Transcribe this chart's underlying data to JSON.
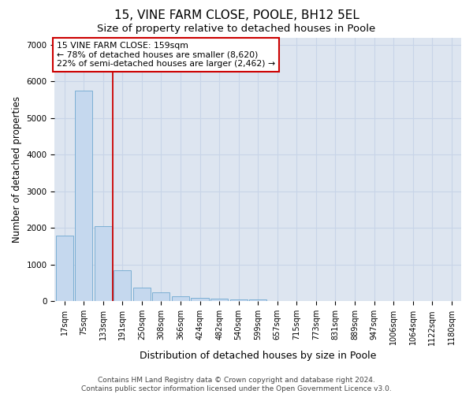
{
  "title1": "15, VINE FARM CLOSE, POOLE, BH12 5EL",
  "title2": "Size of property relative to detached houses in Poole",
  "xlabel": "Distribution of detached houses by size in Poole",
  "ylabel": "Number of detached properties",
  "categories": [
    "17sqm",
    "75sqm",
    "133sqm",
    "191sqm",
    "250sqm",
    "308sqm",
    "366sqm",
    "424sqm",
    "482sqm",
    "540sqm",
    "599sqm",
    "657sqm",
    "715sqm",
    "773sqm",
    "831sqm",
    "889sqm",
    "947sqm",
    "1006sqm",
    "1064sqm",
    "1122sqm",
    "1180sqm"
  ],
  "values": [
    1800,
    5750,
    2060,
    840,
    380,
    240,
    130,
    90,
    70,
    50,
    50,
    0,
    0,
    0,
    0,
    0,
    0,
    0,
    0,
    0,
    0
  ],
  "bar_color": "#c5d8ee",
  "bar_edge_color": "#6fa8d0",
  "vline_x_idx": 2,
  "vline_color": "#cc0000",
  "annotation_text": "15 VINE FARM CLOSE: 159sqm\n← 78% of detached houses are smaller (8,620)\n22% of semi-detached houses are larger (2,462) →",
  "annotation_box_facecolor": "#ffffff",
  "annotation_box_edgecolor": "#cc0000",
  "ylim": [
    0,
    7200
  ],
  "yticks": [
    0,
    1000,
    2000,
    3000,
    4000,
    5000,
    6000,
    7000
  ],
  "grid_color": "#c8d4e8",
  "bg_color": "#dde5f0",
  "footer1": "Contains HM Land Registry data © Crown copyright and database right 2024.",
  "footer2": "Contains public sector information licensed under the Open Government Licence v3.0.",
  "title1_fontsize": 11,
  "title2_fontsize": 9.5,
  "tick_fontsize": 7,
  "ylabel_fontsize": 8.5,
  "xlabel_fontsize": 9,
  "footer_fontsize": 6.5,
  "annot_fontsize": 7.8
}
